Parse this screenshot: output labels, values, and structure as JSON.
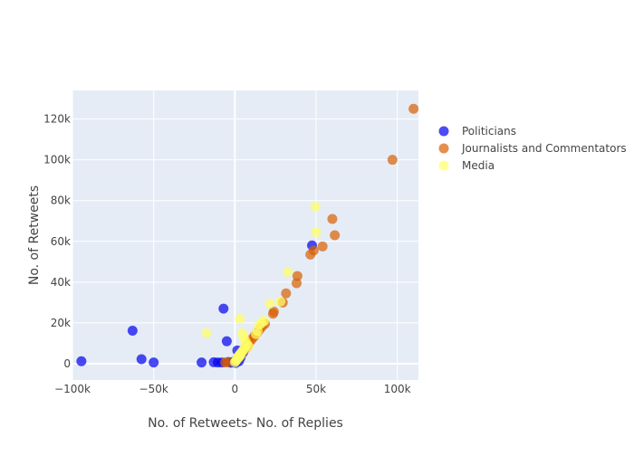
{
  "chart_data": {
    "type": "scatter",
    "title": "",
    "xlabel": "No. of Retweets- No. of Replies",
    "ylabel": "No. of Retweets",
    "xlim": [
      -100000,
      113000
    ],
    "ylim": [
      -8000,
      134000
    ],
    "x_ticks": [
      -100000,
      -50000,
      0,
      50000,
      100000
    ],
    "x_tick_labels": [
      "−100k",
      "−50k",
      "0",
      "50k",
      "100k"
    ],
    "y_ticks": [
      0,
      20000,
      40000,
      60000,
      80000,
      100000,
      120000
    ],
    "y_tick_labels": [
      "0",
      "20k",
      "40k",
      "60k",
      "80k",
      "100k",
      "120k"
    ],
    "grid": true,
    "legend_position": "right",
    "series": [
      {
        "name": "Politicians",
        "color": "#0000ee",
        "points": [
          [
            -94500,
            1200
          ],
          [
            -63000,
            16200
          ],
          [
            -57500,
            2200
          ],
          [
            -50000,
            600
          ],
          [
            -20500,
            600
          ],
          [
            -13000,
            700
          ],
          [
            -10500,
            600
          ],
          [
            -8000,
            600
          ],
          [
            -7000,
            27000
          ],
          [
            -5000,
            11000
          ],
          [
            -4000,
            800
          ],
          [
            -2500,
            500
          ],
          [
            -1000,
            900
          ],
          [
            0,
            1000
          ],
          [
            500,
            400
          ],
          [
            1000,
            2000
          ],
          [
            1500,
            6500
          ],
          [
            2500,
            1200
          ],
          [
            3500,
            3000
          ],
          [
            5000,
            5500
          ],
          [
            47500,
            58000
          ]
        ]
      },
      {
        "name": "Journalists and Commentators",
        "color": "#d95f02",
        "points": [
          [
            110000,
            125000
          ],
          [
            97000,
            100000
          ],
          [
            60000,
            71000
          ],
          [
            61500,
            63000
          ],
          [
            54000,
            57500
          ],
          [
            48500,
            55500
          ],
          [
            46500,
            53500
          ],
          [
            38500,
            43000
          ],
          [
            38000,
            39500
          ],
          [
            31500,
            34500
          ],
          [
            29500,
            30000
          ],
          [
            24000,
            25500
          ],
          [
            23500,
            24500
          ],
          [
            18500,
            19500
          ],
          [
            16500,
            18000
          ],
          [
            15000,
            16500
          ],
          [
            13500,
            15000
          ],
          [
            12000,
            13500
          ],
          [
            10500,
            12000
          ],
          [
            9000,
            10500
          ],
          [
            8000,
            9000
          ],
          [
            7000,
            8000
          ],
          [
            6000,
            7000
          ],
          [
            5000,
            6000
          ],
          [
            4000,
            5000
          ],
          [
            3000,
            4000
          ],
          [
            2000,
            3000
          ],
          [
            1000,
            2000
          ],
          [
            -6000,
            600
          ],
          [
            -4000,
            800
          ]
        ]
      },
      {
        "name": "Media",
        "color": "#ffff66",
        "points": [
          [
            49500,
            77000
          ],
          [
            50000,
            64500
          ],
          [
            32500,
            45000
          ],
          [
            28000,
            30500
          ],
          [
            21500,
            29500
          ],
          [
            18000,
            21000
          ],
          [
            16500,
            20000
          ],
          [
            15000,
            19000
          ],
          [
            14000,
            16000
          ],
          [
            13000,
            14500
          ],
          [
            3000,
            22000
          ],
          [
            -17500,
            15000
          ],
          [
            4500,
            15000
          ],
          [
            5500,
            13000
          ],
          [
            6500,
            11000
          ],
          [
            7500,
            9500
          ],
          [
            8500,
            8500
          ],
          [
            6000,
            7500
          ],
          [
            5000,
            6500
          ],
          [
            4000,
            5500
          ],
          [
            3000,
            4500
          ],
          [
            2000,
            3500
          ],
          [
            1500,
            2500
          ],
          [
            1000,
            1800
          ],
          [
            500,
            1200
          ],
          [
            0,
            700
          ],
          [
            2500,
            3000
          ],
          [
            3500,
            4200
          ]
        ]
      }
    ]
  }
}
